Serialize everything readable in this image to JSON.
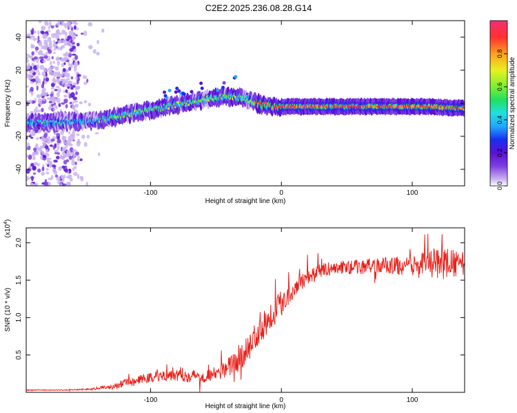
{
  "title": "C2E2.2025.236.08.28.G14",
  "colors": {
    "snr_line": "#e8201a",
    "axis": "#000000",
    "colormap": [
      "#ffffff",
      "#c9b3f0",
      "#7d3ee0",
      "#5a10d8",
      "#1a2ef0",
      "#1fa8ff",
      "#20e0e0",
      "#20e060",
      "#7ef030",
      "#e8f020",
      "#ffa020",
      "#ff3030",
      "#f03070"
    ]
  },
  "chart_data": [
    {
      "type": "heatmap",
      "title": "C2E2.2025.236.08.28.G14",
      "xlabel": "Height of straight line (km)",
      "ylabel": "Frequency (Hz)",
      "xlim": [
        -195,
        140
      ],
      "ylim": [
        -50,
        50
      ],
      "xticks": [
        -100,
        0,
        100
      ],
      "yticks": [
        -40,
        -20,
        0,
        20,
        40
      ],
      "ridge": {
        "x": [
          -195,
          -175,
          -160,
          -145,
          -135,
          -120,
          -100,
          -80,
          -60,
          -45,
          -35,
          -25,
          -15,
          -5,
          0,
          20,
          50,
          80,
          110,
          140
        ],
        "y": [
          -12,
          -12,
          -11,
          -11,
          -10,
          -7,
          -4,
          -1,
          2,
          4,
          4,
          2,
          -1,
          -2,
          -2,
          -2,
          -2,
          -2,
          -2,
          -3
        ]
      },
      "colorbar": {
        "label": "Normalized spectral amplitude",
        "range": [
          0,
          1
        ],
        "ticks": [
          "0.0",
          "0.2",
          "0.4",
          "0.6",
          "0.8"
        ]
      }
    },
    {
      "type": "line",
      "xlabel": "Height of straight line (km)",
      "ylabel": "SNR (10 * v/v)",
      "scale_label": "(x10",
      "scale_exp": "4",
      "xlim": [
        -195,
        140
      ],
      "ylim": [
        0,
        2.2
      ],
      "xticks": [
        -100,
        0,
        100
      ],
      "yticks": [
        "0.5",
        "1.0",
        "1.5",
        "2.0"
      ],
      "series": [
        {
          "name": "SNR",
          "x": [
            -195,
            -170,
            -150,
            -130,
            -120,
            -110,
            -100,
            -90,
            -80,
            -70,
            -60,
            -50,
            -40,
            -30,
            -25,
            -20,
            -15,
            -10,
            -5,
            0,
            5,
            10,
            20,
            30,
            40,
            60,
            80,
            100,
            110,
            120,
            130,
            140
          ],
          "y": [
            0.03,
            0.03,
            0.04,
            0.07,
            0.12,
            0.16,
            0.2,
            0.23,
            0.25,
            0.22,
            0.22,
            0.24,
            0.35,
            0.48,
            0.6,
            0.75,
            0.9,
            1.0,
            1.1,
            1.2,
            1.3,
            1.4,
            1.55,
            1.63,
            1.66,
            1.68,
            1.7,
            1.68,
            1.7,
            1.73,
            1.72,
            1.72
          ],
          "noise": [
            0.005,
            0.005,
            0.01,
            0.03,
            0.05,
            0.06,
            0.07,
            0.08,
            0.1,
            0.09,
            0.09,
            0.1,
            0.13,
            0.16,
            0.18,
            0.2,
            0.22,
            0.22,
            0.2,
            0.18,
            0.15,
            0.12,
            0.1,
            0.09,
            0.09,
            0.1,
            0.11,
            0.14,
            0.18,
            0.22,
            0.2,
            0.15
          ]
        }
      ]
    }
  ]
}
